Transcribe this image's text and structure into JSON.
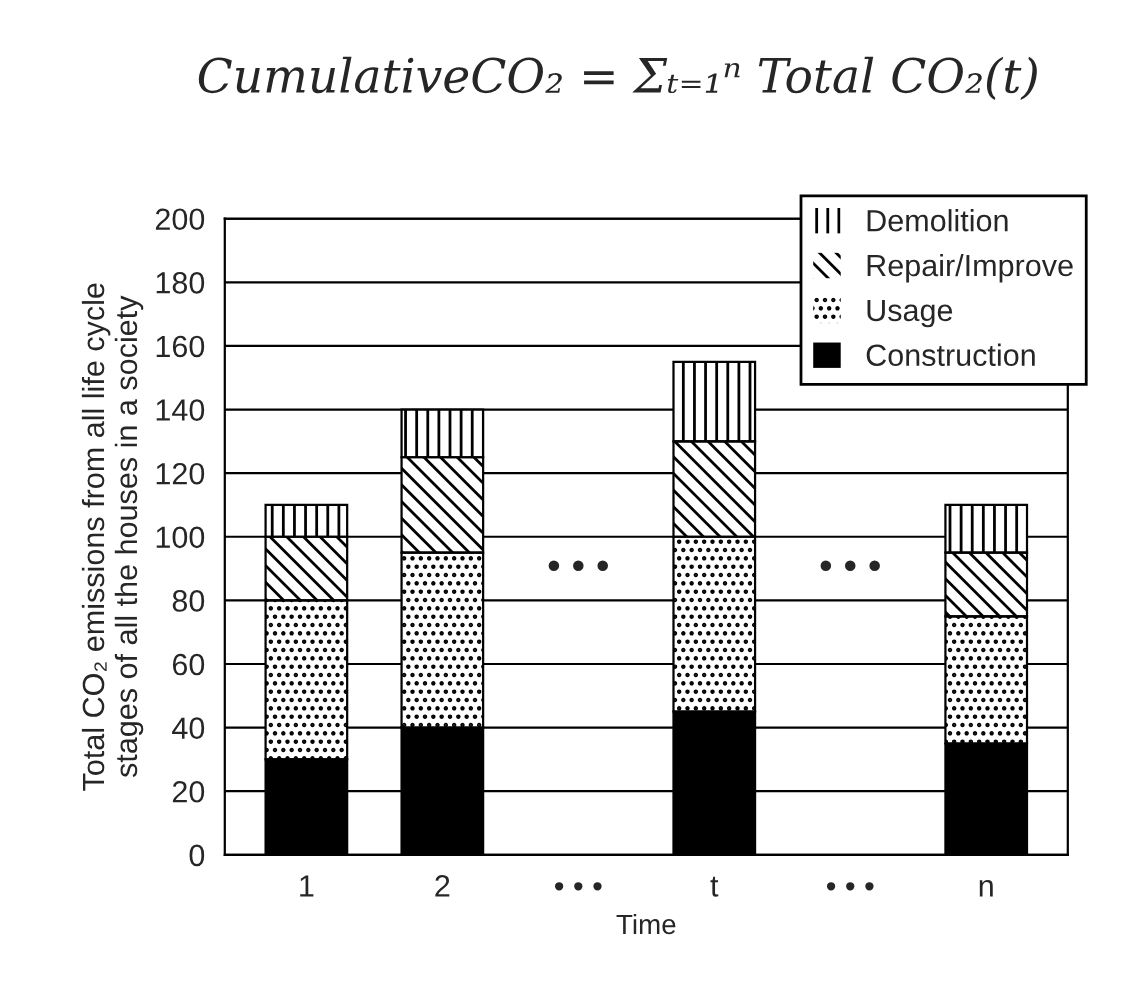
{
  "chart_data": {
    "type": "bar",
    "stacked": true,
    "title": "CumulativeCO₂ = Σₜ₌₁ⁿ Total CO₂(t)",
    "xlabel": "Time",
    "ylabel": "Total CO₂ emissions from all life cycle\nstages of all the houses in a society",
    "categories": [
      "1",
      "2",
      "• • •",
      "t",
      "• • •",
      "n"
    ],
    "series": [
      {
        "name": "Construction",
        "color": "#000000",
        "values": [
          30,
          40,
          null,
          45,
          null,
          35
        ]
      },
      {
        "name": "Usage",
        "color": "#ffffff",
        "values": [
          50,
          55,
          null,
          55,
          null,
          40
        ]
      },
      {
        "name": "Repair/Improve",
        "color": "#ffffff",
        "values": [
          20,
          30,
          null,
          30,
          null,
          20
        ]
      },
      {
        "name": "Demolition",
        "color": "#ffffff",
        "values": [
          10,
          15,
          null,
          25,
          null,
          15
        ]
      }
    ],
    "annotations": [
      "• • •",
      "• • •"
    ],
    "ylim": [
      0,
      200
    ],
    "yticks": [
      0,
      20,
      40,
      60,
      80,
      100,
      120,
      140,
      160,
      180,
      200
    ],
    "grid": "y",
    "legend": "top right"
  }
}
